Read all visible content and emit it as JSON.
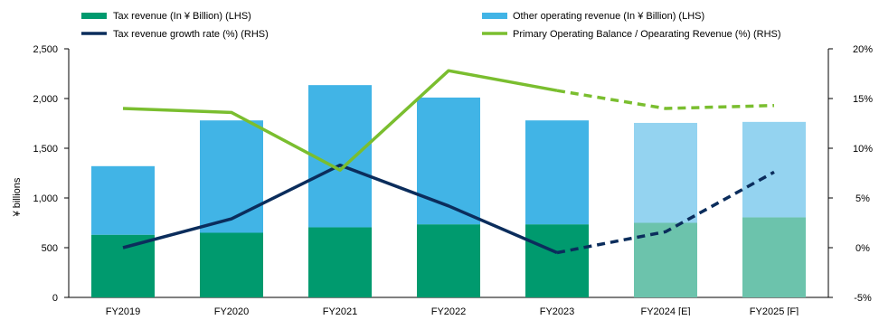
{
  "chart_data": {
    "type": "bar",
    "categories": [
      "FY2019",
      "FY2020",
      "FY2021",
      "FY2022",
      "FY2023",
      "FY2024 [E]",
      "FY2025 [F]"
    ],
    "estimated_from_index": 5,
    "ylabel": "¥ billions",
    "ylim": [
      0,
      2500
    ],
    "y_ticks": [
      0,
      500,
      1000,
      1500,
      2000,
      2500
    ],
    "y_tick_labels": [
      "0",
      "500",
      "1,000",
      "1,500",
      "2,000",
      "2,500"
    ],
    "y2lim": [
      -5,
      20
    ],
    "y2_ticks": [
      -5,
      0,
      5,
      10,
      15,
      20
    ],
    "y2_tick_labels": [
      "-5%",
      "0%",
      "5%",
      "10%",
      "15%",
      "20%"
    ],
    "grid": false,
    "legend_position": "top",
    "stacked_bars": [
      {
        "name": "Tax revenue (In ¥ Billion) (LHS)",
        "axis": "left",
        "color": "#009a6e",
        "color_estimate": "#6cc3ac",
        "values": [
          630,
          650,
          705,
          735,
          735,
          750,
          805
        ]
      },
      {
        "name": "Other operating revenue (In ¥ Billion) (LHS)",
        "axis": "left",
        "color": "#41b4e6",
        "color_estimate": "#94d3f0",
        "values": [
          690,
          1130,
          1430,
          1275,
          1045,
          1005,
          960
        ]
      }
    ],
    "lines": [
      {
        "name": "Tax revenue growth rate (%) (RHS)",
        "axis": "right",
        "color": "#0b2d5c",
        "values": [
          0.0,
          2.9,
          8.3,
          4.2,
          -0.5,
          1.6,
          7.6
        ],
        "dashed_from_index": 4
      },
      {
        "name": "Primary Operating Balance / Opearating Revenue (%) (RHS)",
        "axis": "right",
        "color": "#7abe2f",
        "values": [
          14.0,
          13.6,
          7.8,
          17.8,
          15.8,
          14.0,
          14.3
        ],
        "dashed_from_index": 4
      }
    ]
  }
}
